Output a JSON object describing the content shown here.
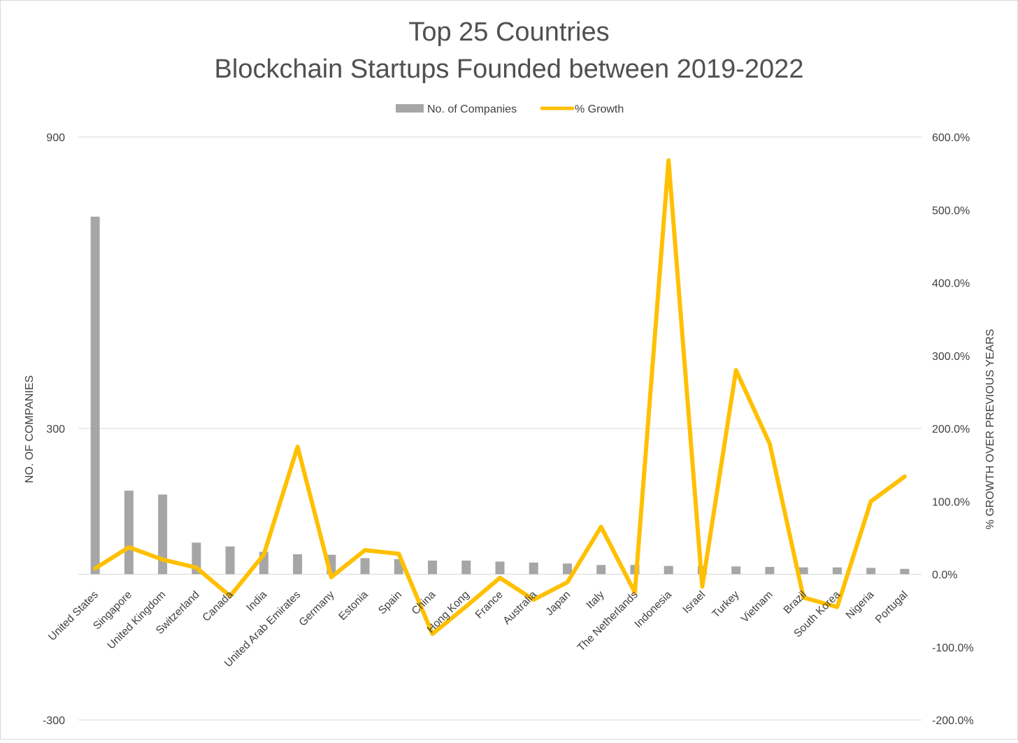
{
  "chart_data": {
    "type": "bar",
    "title": [
      "Top 25 Countries",
      "Blockchain Startups Founded between 2019-2022"
    ],
    "legend_position": "top-center",
    "grid": true,
    "categories": [
      "United States",
      "Singapore",
      "United Kingdom",
      "Switzerland",
      "Canada",
      "India",
      "United Arab Emirates",
      "Germany",
      "Estonia",
      "Spain",
      "China",
      "Hong Kong",
      "France",
      "Australia",
      "Japan",
      "Italy",
      "The Netherlands",
      "Indonesia",
      "Israel",
      "Turkey",
      "Vietnam",
      "Brazil",
      "South Korea",
      "Nigeria",
      "Portugal"
    ],
    "series": [
      {
        "name": "No. of Companies",
        "type": "bar",
        "axis": "left",
        "color": "#a6a6a6",
        "values": [
          736,
          172,
          164,
          65,
          57,
          46,
          41,
          40,
          33,
          31,
          28,
          28,
          26,
          24,
          22,
          19,
          19,
          17,
          17,
          16,
          15,
          14,
          14,
          13,
          11
        ]
      },
      {
        "name": "% Growth",
        "type": "line",
        "axis": "right",
        "color": "#ffc000",
        "values": [
          8,
          37,
          20,
          9,
          -30,
          27,
          175,
          -4,
          33,
          28,
          -82,
          -44,
          -5,
          -35,
          -11,
          65,
          -25,
          568,
          -17,
          280,
          179,
          -32,
          -45,
          100,
          134
        ]
      }
    ],
    "y_left": {
      "label": "NO. OF COMPANIES",
      "ylim": [
        -300,
        900
      ],
      "ticks": [
        900,
        300,
        -300
      ],
      "tick_labels": [
        "900",
        "300",
        "-300"
      ]
    },
    "y_right": {
      "label": "% GROWTH OVER PREVIOUS YEARS",
      "ylim": [
        -200,
        600
      ],
      "ticks": [
        600,
        500,
        400,
        300,
        200,
        100,
        0,
        -100,
        -200
      ],
      "tick_labels": [
        "600.0%",
        "500.0%",
        "400.0%",
        "300.0%",
        "200.0%",
        "100.0%",
        "0.0%",
        "-100.0%",
        "-200.0%"
      ]
    }
  }
}
